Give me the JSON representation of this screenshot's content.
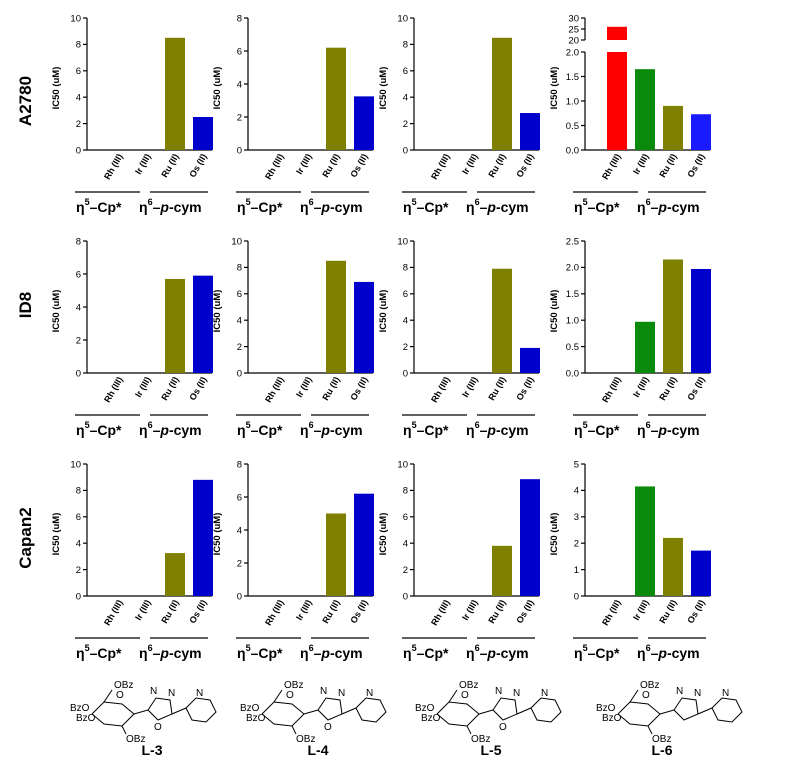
{
  "row_labels": [
    "A2780",
    "ID8",
    "Capan2"
  ],
  "ligands": [
    "L-3",
    "L-4",
    "L-5",
    "L-6"
  ],
  "group_labels": {
    "cp": {
      "eta": "η",
      "sup": "5",
      "rest": "–Cp*"
    },
    "cym": {
      "eta": "η",
      "sup": "6",
      "dash": "–",
      "p": "p",
      "rest": "-cym"
    }
  },
  "structure_text": {
    "obz": "OBz",
    "bzo": "BzO",
    "o": "O",
    "n": "N",
    "bzo_bzo": "BzO",
    "bzo_o": "BzO"
  },
  "colors": {
    "Rh (III)": "#ff0000",
    "Ir (III)": "#0a8a0a",
    "Ru (II)": "#808000",
    "Os (II)": "#0000cc",
    "Os (II) bright": "#1a1aff"
  },
  "chart_data": [
    {
      "type": "bar",
      "row": "A2780",
      "ligand": "L-3",
      "title": "",
      "xlabel": "",
      "ylabel": "IC50 (uM)",
      "categories": [
        "Rh (III)",
        "Ir (III)",
        "Ru (II)",
        "Os (II)"
      ],
      "values": [
        null,
        null,
        8.5,
        2.5
      ],
      "ylim": [
        0,
        10
      ],
      "yticks": [
        "0",
        "2",
        "4",
        "6",
        "8",
        "10"
      ]
    },
    {
      "type": "bar",
      "row": "A2780",
      "ligand": "L-4",
      "title": "",
      "xlabel": "",
      "ylabel": "IC50 (uM)",
      "categories": [
        "Rh (III)",
        "Ir (III)",
        "Ru (II)",
        "Os (II)"
      ],
      "values": [
        null,
        null,
        6.2,
        3.25
      ],
      "ylim": [
        0,
        8
      ],
      "yticks": [
        "0",
        "2",
        "4",
        "6",
        "8"
      ]
    },
    {
      "type": "bar",
      "row": "A2780",
      "ligand": "L-5",
      "title": "",
      "xlabel": "",
      "ylabel": "IC50 (uM)",
      "categories": [
        "Rh (III)",
        "Ir (III)",
        "Ru (II)",
        "Os (II)"
      ],
      "values": [
        null,
        null,
        8.5,
        2.8
      ],
      "ylim": [
        0,
        10
      ],
      "yticks": [
        "0",
        "2",
        "4",
        "6",
        "8",
        "10"
      ]
    },
    {
      "type": "bar",
      "row": "A2780",
      "ligand": "L-6",
      "title": "",
      "xlabel": "",
      "ylabel": "IC50 (uM)",
      "categories": [
        "Rh (III)",
        "Ir (III)",
        "Ru (II)",
        "Os (II)"
      ],
      "values": [
        26,
        1.65,
        0.9,
        0.73
      ],
      "ylim": [
        0,
        30
      ],
      "axis_break": [
        2,
        20
      ],
      "upper_ylim": [
        20,
        30
      ],
      "lower_ylim": [
        0,
        2
      ],
      "yticks_lower": [
        "0.0",
        "0.5",
        "1.0",
        "1.5",
        "2.0"
      ],
      "yticks_upper": [
        "25",
        "30"
      ],
      "upper_label_20": "20",
      "bright_os": true
    },
    {
      "type": "bar",
      "row": "ID8",
      "ligand": "L-3",
      "title": "",
      "xlabel": "",
      "ylabel": "IC50 (uM)",
      "categories": [
        "Rh (III)",
        "Ir (III)",
        "Ru (II)",
        "Os (II)"
      ],
      "values": [
        null,
        null,
        5.7,
        5.9
      ],
      "ylim": [
        0,
        8
      ],
      "yticks": [
        "0",
        "2",
        "4",
        "6",
        "8"
      ]
    },
    {
      "type": "bar",
      "row": "ID8",
      "ligand": "L-4",
      "title": "",
      "xlabel": "",
      "ylabel": "IC50 (uM)",
      "categories": [
        "Rh (III)",
        "Ir (III)",
        "Ru (II)",
        "Os (II)"
      ],
      "values": [
        null,
        null,
        8.5,
        6.9
      ],
      "ylim": [
        0,
        10
      ],
      "yticks": [
        "0",
        "2",
        "4",
        "6",
        "8",
        "10"
      ]
    },
    {
      "type": "bar",
      "row": "ID8",
      "ligand": "L-5",
      "title": "",
      "xlabel": "",
      "ylabel": "IC50 (uM)",
      "categories": [
        "Rh (III)",
        "Ir (III)",
        "Ru (II)",
        "Os (II)"
      ],
      "values": [
        null,
        null,
        7.9,
        1.9
      ],
      "ylim": [
        0,
        10
      ],
      "yticks": [
        "0",
        "2",
        "4",
        "6",
        "8",
        "10"
      ]
    },
    {
      "type": "bar",
      "row": "ID8",
      "ligand": "L-6",
      "title": "",
      "xlabel": "",
      "ylabel": "IC50 (uM)",
      "categories": [
        "Rh (III)",
        "Ir (III)",
        "Ru (II)",
        "Os (II)"
      ],
      "values": [
        null,
        0.97,
        2.15,
        1.97
      ],
      "ylim": [
        0,
        2.5
      ],
      "yticks": [
        "0.0",
        "0.5",
        "1.0",
        "1.5",
        "2.0",
        "2.5"
      ]
    },
    {
      "type": "bar",
      "row": "Capan2",
      "ligand": "L-3",
      "title": "",
      "xlabel": "",
      "ylabel": "IC50 (uM)",
      "categories": [
        "Rh (III)",
        "Ir (III)",
        "Ru (II)",
        "Os (II)"
      ],
      "values": [
        null,
        null,
        3.25,
        8.8
      ],
      "ylim": [
        0,
        10
      ],
      "yticks": [
        "0",
        "2",
        "4",
        "6",
        "8",
        "10"
      ]
    },
    {
      "type": "bar",
      "row": "Capan2",
      "ligand": "L-4",
      "title": "",
      "xlabel": "",
      "ylabel": "IC50 (uM)",
      "categories": [
        "Rh (III)",
        "Ir (III)",
        "Ru (II)",
        "Os (II)"
      ],
      "values": [
        null,
        null,
        5.0,
        6.2
      ],
      "ylim": [
        0,
        8
      ],
      "yticks": [
        "0",
        "2",
        "4",
        "6",
        "8"
      ]
    },
    {
      "type": "bar",
      "row": "Capan2",
      "ligand": "L-5",
      "title": "",
      "xlabel": "",
      "ylabel": "IC50 (uM)",
      "categories": [
        "Rh (III)",
        "Ir (III)",
        "Ru (II)",
        "Os (II)"
      ],
      "values": [
        null,
        null,
        3.8,
        8.85
      ],
      "ylim": [
        0,
        10
      ],
      "yticks": [
        "0",
        "2",
        "4",
        "6",
        "8",
        "10"
      ]
    },
    {
      "type": "bar",
      "row": "Capan2",
      "ligand": "L-6",
      "title": "",
      "xlabel": "",
      "ylabel": "IC50 (uM)",
      "categories": [
        "Rh (III)",
        "Ir (III)",
        "Ru (II)",
        "Os (II)"
      ],
      "values": [
        null,
        4.15,
        2.2,
        1.72
      ],
      "ylim": [
        0,
        5
      ],
      "yticks": [
        "0",
        "1",
        "2",
        "3",
        "4",
        "5"
      ]
    }
  ]
}
